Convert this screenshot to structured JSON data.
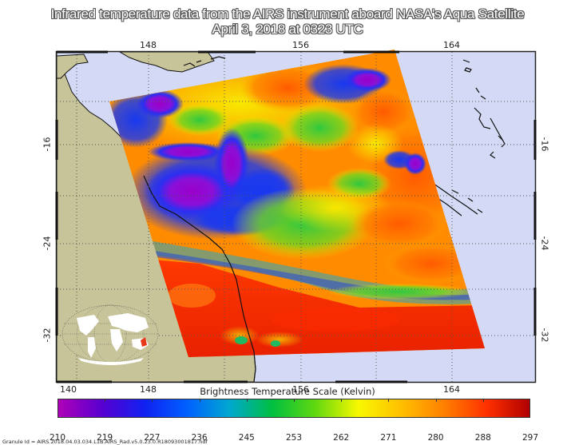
{
  "header": {
    "title_line1": "Infrared temperature data from the AIRS instrument aboard NASA's Aqua Satellite",
    "title_line2": "April 3, 2018 at 0323 UTC"
  },
  "map": {
    "longitude_labels_top": [
      "148",
      "156",
      "164"
    ],
    "longitude_labels_bottom": [
      "140",
      "148",
      "156",
      "164"
    ],
    "latitude_labels_left": [
      "-16",
      "-24",
      "-32"
    ],
    "latitude_labels_right": [
      "-16",
      "-24",
      "-32"
    ],
    "colors": {
      "ocean": "#d4daf5",
      "land": "#c8c49a",
      "frame": "#222222",
      "grid": "#555555"
    },
    "inset": {
      "name": "world-locator-map",
      "highlight_color": "#e8381a"
    }
  },
  "colorbar": {
    "title": "Brightness Temperature Scale (Kelvin)",
    "ticks": [
      "210",
      "219",
      "227",
      "236",
      "245",
      "253",
      "262",
      "271",
      "280",
      "288",
      "297"
    ],
    "min": 210,
    "max": 297,
    "colors": [
      "#b000b8",
      "#5a00d0",
      "#1020f0",
      "#0060ff",
      "#00a8d0",
      "#00c040",
      "#60d810",
      "#f8f800",
      "#ffc000",
      "#ff8000",
      "#ff3000",
      "#b00000"
    ]
  },
  "footer": {
    "granule_id": "Granule Id = AIRS.2018.04.03.034.L1B.AIRS_Rad.v5.0.23.0.R18093001817.hdf"
  }
}
